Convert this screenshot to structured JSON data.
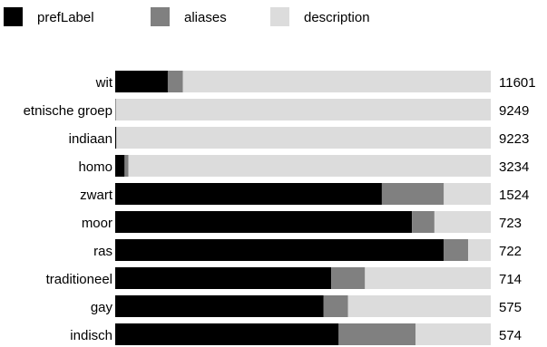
{
  "chart_data": {
    "type": "bar",
    "orientation": "horizontal",
    "stacked": "100-percent",
    "title": "",
    "xlabel": "",
    "ylabel": "",
    "legend_position": "top-left",
    "grid": false,
    "series": [
      {
        "name": "prefLabel",
        "color": "#000000",
        "values": [
          14,
          0.1,
          0.3,
          2.5,
          71,
          79,
          87.5,
          57.5,
          55.5,
          59.5
        ]
      },
      {
        "name": "aliases",
        "color": "#808080",
        "values": [
          4,
          0,
          0,
          1,
          16.5,
          6,
          6.5,
          9,
          6.5,
          20.5
        ]
      },
      {
        "name": "description",
        "color": "#dcdcdc",
        "values": [
          82,
          99.9,
          99.7,
          96.5,
          12.5,
          15,
          6,
          33.5,
          38,
          20
        ]
      }
    ],
    "categories": [
      "wit",
      "etnische groep",
      "indiaan",
      "homo",
      "zwart",
      "moor",
      "ras",
      "traditioneel",
      "gay",
      "indisch"
    ],
    "totals": [
      "11601",
      "9249",
      "9223",
      "3234",
      "1524",
      "723",
      "722",
      "714",
      "575",
      "574"
    ]
  }
}
